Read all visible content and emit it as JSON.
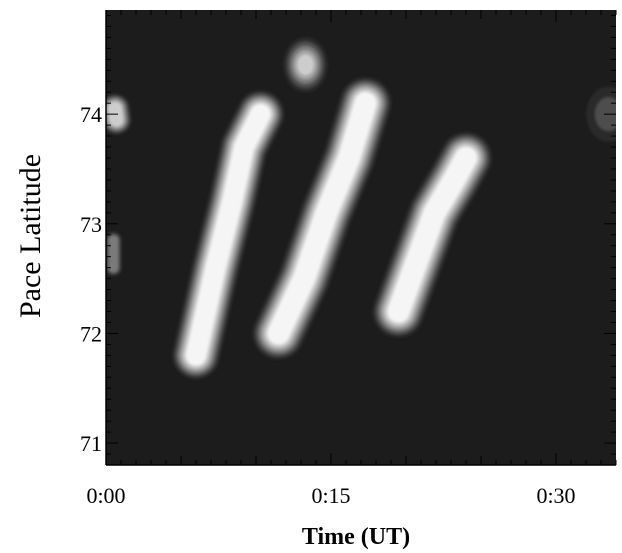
{
  "chart_data": {
    "type": "heatmap",
    "title": "",
    "xlabel": "Time (UT)",
    "ylabel": "Pace Latitude",
    "x_unit": "minutes UT",
    "xlim": [
      0,
      34
    ],
    "ylim": [
      70.8,
      74.95
    ],
    "x_major_ticks": [
      {
        "value": 0,
        "label": "0:00"
      },
      {
        "value": 15,
        "label": "0:15"
      },
      {
        "value": 30,
        "label": "0:30"
      }
    ],
    "x_minor_step": 1,
    "x_medium_step": 5,
    "y_major_ticks": [
      {
        "value": 71,
        "label": "71"
      },
      {
        "value": 72,
        "label": "72"
      },
      {
        "value": 73,
        "label": "73"
      },
      {
        "value": 74,
        "label": "74"
      }
    ],
    "y_minor_step": 0.1,
    "colormap": [
      "#141414",
      "#2b2b2b",
      "#4d4d4d",
      "#7a7a7a",
      "#a6a6a6",
      "#cdcdcd",
      "#f5f5f5"
    ],
    "background_color": "#1c1c1c",
    "features": [
      {
        "name": "blob-1",
        "points": [
          [
            0.6,
            74.05
          ],
          [
            0.7,
            73.95
          ]
        ],
        "width_min": 0.7,
        "peak": 0.85
      },
      {
        "name": "blob-2",
        "points": [
          [
            0.5,
            72.85
          ],
          [
            0.5,
            72.6
          ]
        ],
        "width_min": 0.4,
        "peak": 0.45
      },
      {
        "name": "arc-1",
        "points": [
          [
            6.0,
            71.8
          ],
          [
            7.3,
            72.6
          ],
          [
            8.4,
            73.2
          ],
          [
            9.2,
            73.7
          ],
          [
            10.3,
            74.0
          ]
        ],
        "width_min": 1.1,
        "peak": 0.97
      },
      {
        "name": "blob-3",
        "points": [
          [
            13.3,
            74.45
          ]
        ],
        "width_min": 0.6,
        "peak": 0.75
      },
      {
        "name": "arc-2",
        "points": [
          [
            11.5,
            72.0
          ],
          [
            13.2,
            72.5
          ],
          [
            14.7,
            73.1
          ],
          [
            16.2,
            73.6
          ],
          [
            17.3,
            74.1
          ]
        ],
        "width_min": 1.2,
        "peak": 0.93
      },
      {
        "name": "arc-3",
        "points": [
          [
            19.5,
            72.2
          ],
          [
            20.7,
            72.65
          ],
          [
            21.9,
            73.1
          ],
          [
            23.2,
            73.4
          ],
          [
            24.0,
            73.6
          ]
        ],
        "width_min": 1.2,
        "peak": 0.95
      },
      {
        "name": "blob-4",
        "points": [
          [
            33.5,
            74.0
          ]
        ],
        "width_min": 0.6,
        "peak": 0.35
      }
    ]
  }
}
